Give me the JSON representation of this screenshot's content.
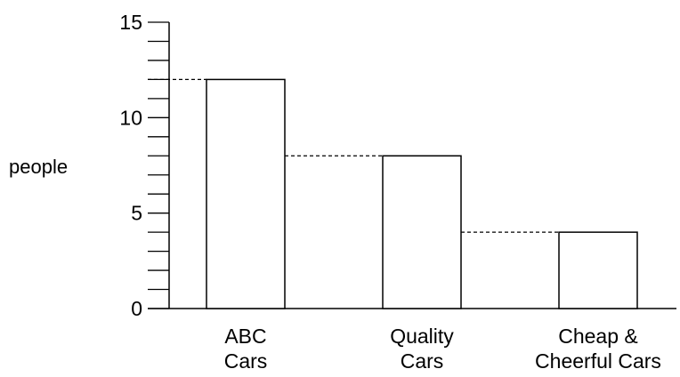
{
  "chart_data": {
    "type": "bar",
    "title": "",
    "xlabel": "",
    "ylabel": "people",
    "categories": [
      [
        "ABC",
        "Cars"
      ],
      [
        "Quality",
        "Cars"
      ],
      [
        "Cheap &",
        "Cheerful Cars"
      ]
    ],
    "values": [
      12,
      8,
      4
    ],
    "ylim": [
      0,
      15
    ],
    "major_ticks": [
      0,
      5,
      10,
      15
    ],
    "minor_tick_step": 1,
    "dashed_guides": true,
    "grid": false,
    "legend": "none"
  }
}
